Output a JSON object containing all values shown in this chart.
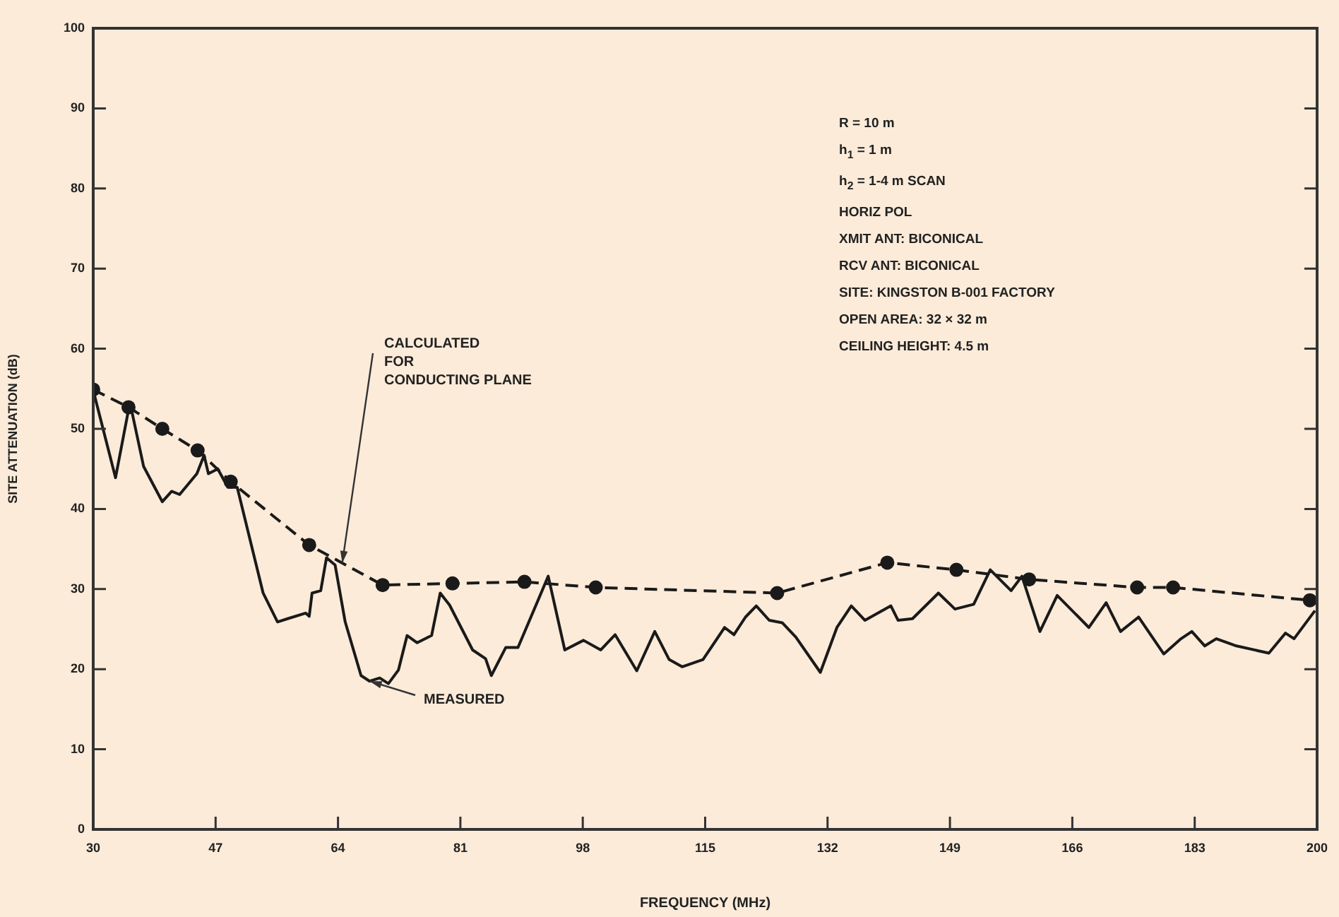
{
  "chart_data": {
    "type": "line",
    "xlabel": "FREQUENCY (MHz)",
    "ylabel": "SITE ATTENUATION (dB)",
    "xlim": [
      30,
      200
    ],
    "xticks": [
      30,
      47,
      64,
      81,
      98,
      115,
      132,
      149,
      166,
      183,
      200
    ],
    "ylim": [
      0,
      100
    ],
    "yticks": [
      0,
      10,
      20,
      30,
      40,
      50,
      60,
      70,
      80,
      90,
      100
    ],
    "grid": false,
    "legend": false,
    "series": [
      {
        "name": "CALCULATED\nFOR\nCONDUCTING PLANE",
        "color": "#1a1a1a",
        "line_style": "dashed",
        "marker": "circle",
        "x": [
          30,
          34.9,
          39.6,
          44.5,
          49.1,
          60,
          70.2,
          79.9,
          89.9,
          99.8,
          125,
          140.3,
          149.9,
          160,
          175,
          180,
          199
        ],
        "values": [
          54.9,
          52.7,
          50,
          47.3,
          43.4,
          35.5,
          30.5,
          30.7,
          30.9,
          30.2,
          29.5,
          33.3,
          32.4,
          31.2,
          30.2,
          30.2,
          28.6
        ]
      },
      {
        "name": "MEASURED",
        "color": "#1a1a1a",
        "line_style": "solid",
        "marker": "none",
        "x": [
          30,
          33.1,
          35.1,
          37,
          39.6,
          40.9,
          42,
          44.4,
          45.4,
          46,
          47.3,
          48.7,
          50,
          53.6,
          55.6,
          57,
          59.5,
          60,
          60.4,
          61.6,
          62.4,
          63.6,
          65,
          67.2,
          68.4,
          69.8,
          71,
          72.4,
          73.6,
          75,
          77,
          78.2,
          79.5,
          82.7,
          84.5,
          85.3,
          87.3,
          89,
          93.2,
          95.5,
          98.1,
          100.5,
          102.5,
          105.5,
          108,
          110,
          111.8,
          114.7,
          117.7,
          119,
          120.6,
          122.1,
          123.9,
          125.7,
          127.6,
          131,
          133.3,
          135.3,
          137.2,
          140.8,
          141.8,
          143.8,
          147.4,
          149.7,
          152.3,
          154.6,
          157.5,
          159,
          161.5,
          163.9,
          168.3,
          170.7,
          172.7,
          175.2,
          178.7,
          181.1,
          182.6,
          184.4,
          186,
          188.8,
          193.3,
          195.6,
          196.8,
          199.7
        ],
        "values": [
          54.8,
          43.9,
          53.3,
          45.3,
          40.9,
          42.2,
          41.8,
          44.4,
          46.7,
          44.4,
          45,
          42.7,
          42.7,
          29.5,
          25.9,
          26.3,
          27,
          26.6,
          29.5,
          29.8,
          33.9,
          33,
          25.9,
          19.2,
          18.5,
          18.9,
          18.2,
          19.9,
          24.2,
          23.3,
          24.2,
          29.5,
          28,
          22.4,
          21.3,
          19.2,
          22.7,
          22.7,
          31.6,
          22.4,
          23.6,
          22.4,
          24.3,
          19.8,
          24.7,
          21.2,
          20.3,
          21.2,
          25.2,
          24.3,
          26.5,
          27.9,
          26.1,
          25.8,
          24,
          19.6,
          25.2,
          27.9,
          26.1,
          27.9,
          26.1,
          26.3,
          29.5,
          27.5,
          28.1,
          32.4,
          29.8,
          31.6,
          24.7,
          29.2,
          25.2,
          28.3,
          24.7,
          26.5,
          21.9,
          23.8,
          24.7,
          22.9,
          23.8,
          22.9,
          22,
          24.5,
          23.8,
          27.3
        ]
      }
    ],
    "annotations": [
      "R = 10 m",
      "h$_{1}$ = 1 m",
      "h$_{2}$ = 1-4 m SCAN",
      "HORIZ POL",
      "XMIT ANT: BICONICAL",
      "RCV ANT: BICONICAL",
      "SITE: KINGSTON B-001 FACTORY",
      "OPEN AREA: 32 × 32 m",
      "CEILING HEIGHT: 4.5 m"
    ]
  }
}
